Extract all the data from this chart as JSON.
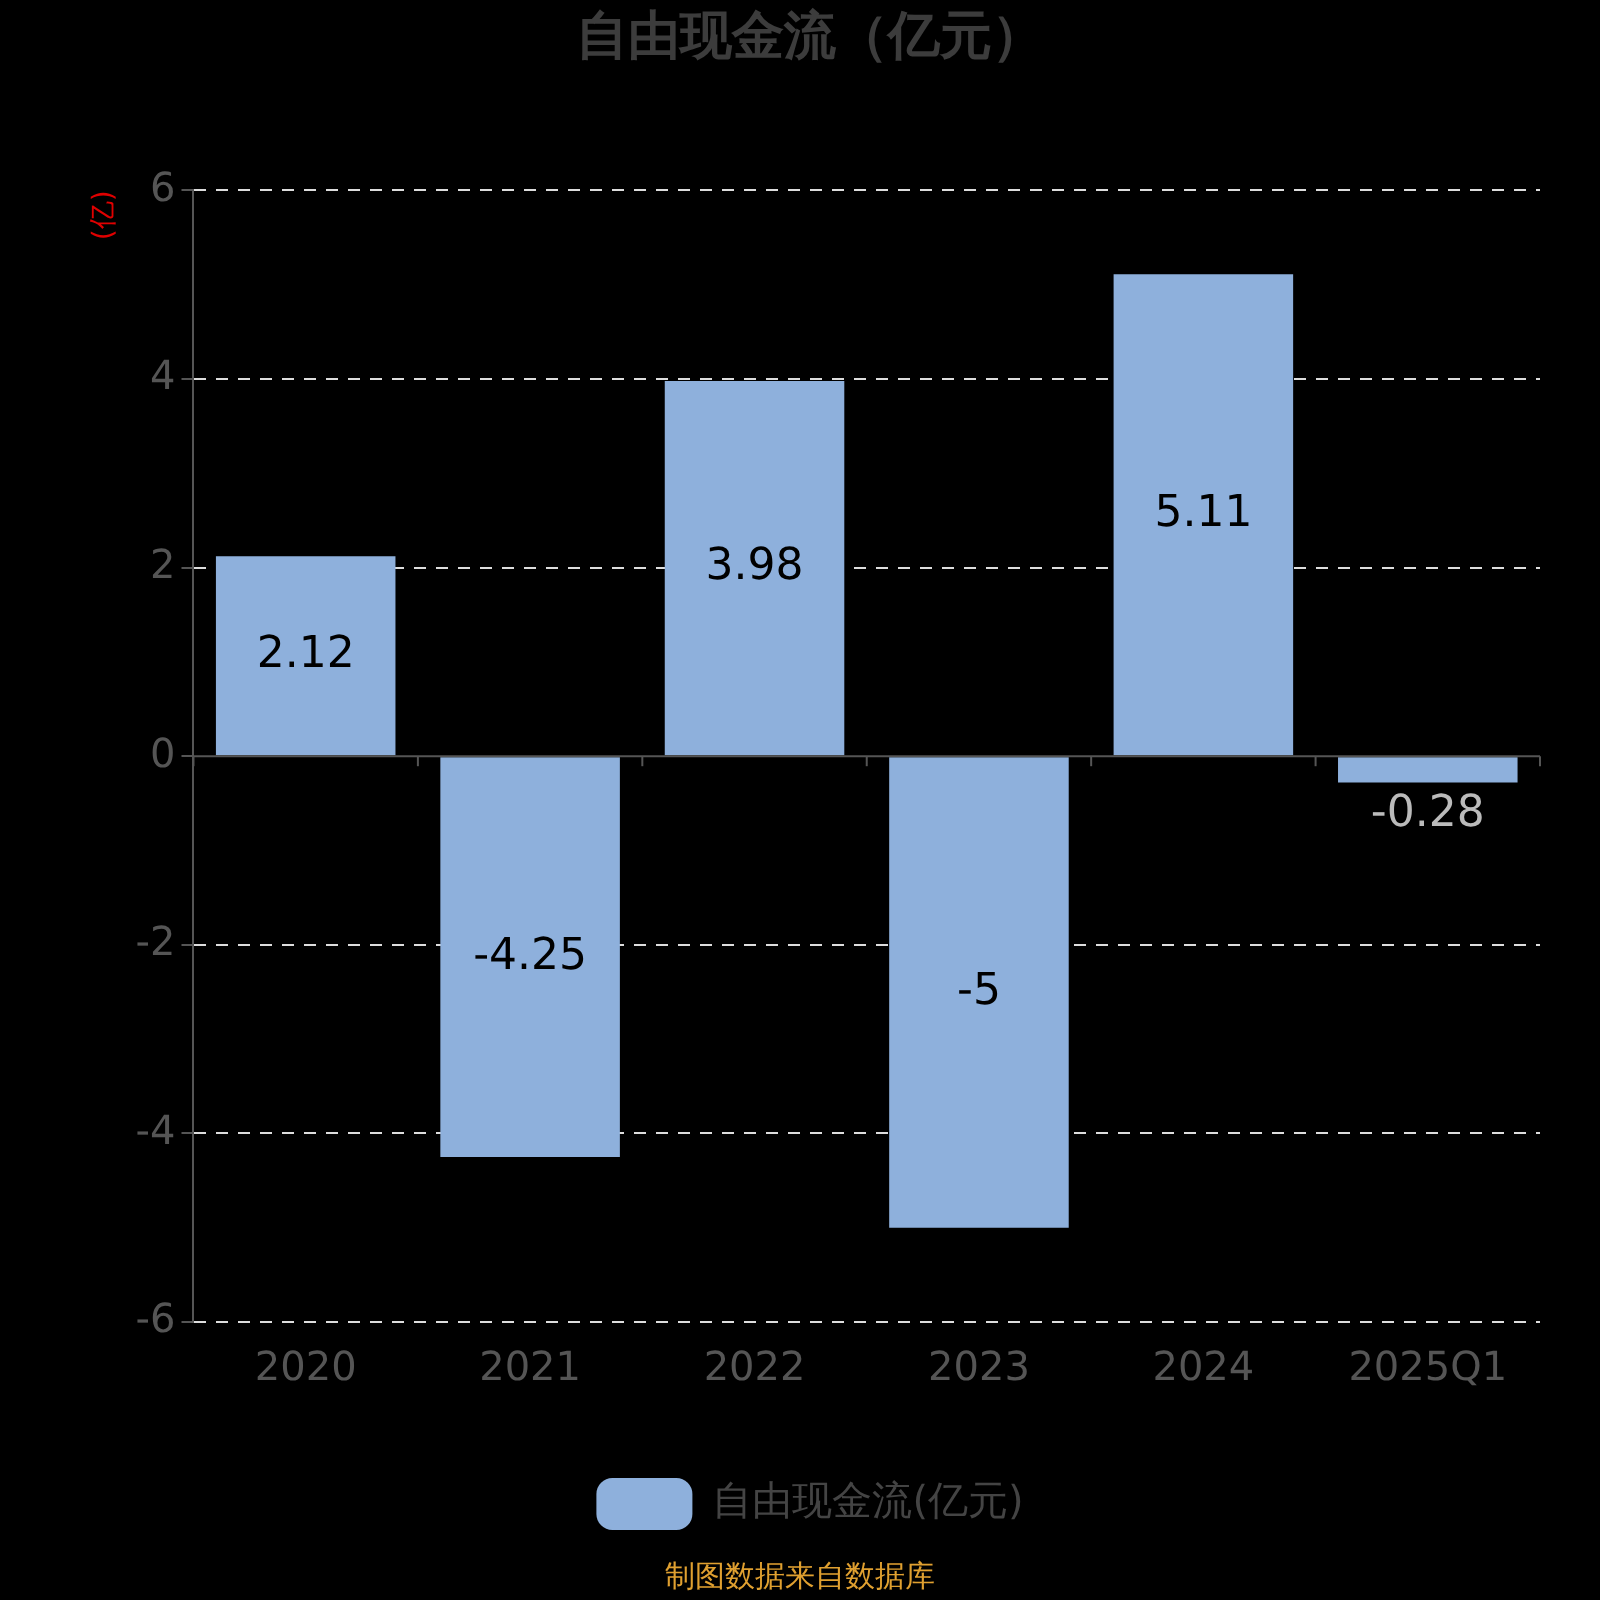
{
  "chart_data": {
    "type": "bar",
    "title": "自由现金流（亿元）",
    "ylabel": "(亿)",
    "categories": [
      "2020",
      "2021",
      "2022",
      "2023",
      "2024",
      "2025Q1"
    ],
    "series": [
      {
        "name": "自由现金流(亿元)",
        "color": "#8eb0dc",
        "values": [
          2.12,
          -4.25,
          3.98,
          -5,
          5.11,
          -0.28
        ]
      }
    ],
    "ylim": [
      -6,
      6
    ],
    "yticks": [
      -6,
      -4,
      -2,
      0,
      2,
      4,
      6
    ],
    "grid": "y",
    "legend": "bottom",
    "data_labels": true,
    "annotations": [
      "制图数据来自数据库"
    ]
  }
}
